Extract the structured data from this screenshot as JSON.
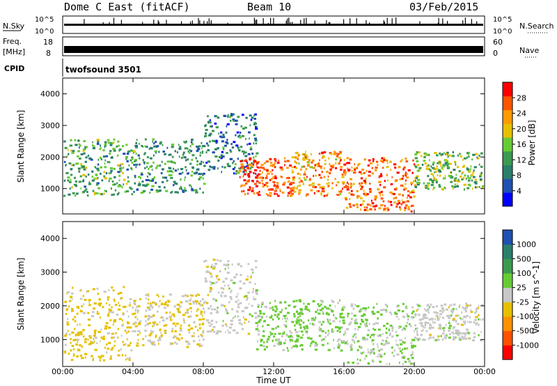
{
  "header": {
    "title": "Dome C East (fitACF)",
    "beam": "Beam 10",
    "date": "03/Feb/2015"
  },
  "status_panels": {
    "nsky_label": "N.Sky",
    "nsky_ticks": [
      "10^5",
      "10^0"
    ],
    "nsearch_label": "N.Search",
    "nsearch_ticks": [
      "10^5",
      "10^0"
    ],
    "freq_label": "Freq.",
    "freq_unit": "[MHz]",
    "freq_ticks": [
      "18",
      "8"
    ],
    "nave_label": "Nave",
    "nave_ticks": [
      "60",
      "0"
    ],
    "cpid_label": "CPID",
    "cpid_value": "twofsound 3501"
  },
  "chart_data": [
    {
      "type": "heatmap",
      "title": "",
      "xlabel": "Time UT",
      "ylabel": "Slant Range [km]",
      "xlim": [
        "00:00",
        "24:00"
      ],
      "ylim": [
        200,
        4500
      ],
      "x_ticks": [
        "00:00",
        "04:00",
        "08:00",
        "12:00",
        "16:00",
        "20:00",
        "00:00"
      ],
      "y_ticks": [
        1000,
        2000,
        3000,
        4000
      ],
      "colorbar": {
        "label": "Power [dB]",
        "ticks": [
          "28",
          "24",
          "20",
          "16",
          "12",
          "8",
          "4"
        ],
        "colors": [
          "#0000ff",
          "#2050b0",
          "#2a7f6a",
          "#3c9a50",
          "#66cc33",
          "#e6c000",
          "#ff9900",
          "#ff5500",
          "#ff0000"
        ]
      },
      "bands": [
        {
          "t_start": 0,
          "t_end": 4,
          "r_min": 800,
          "r_max": 2600,
          "value": 14
        },
        {
          "t_start": 4,
          "t_end": 8,
          "r_min": 900,
          "r_max": 2600,
          "value": 12
        },
        {
          "t_start": 8,
          "t_end": 11,
          "r_min": 1500,
          "r_max": 3400,
          "value": 10
        },
        {
          "t_start": 10,
          "t_end": 13,
          "r_min": 800,
          "r_max": 2000,
          "value": 28
        },
        {
          "t_start": 13,
          "t_end": 16,
          "r_min": 800,
          "r_max": 2200,
          "value": 24
        },
        {
          "t_start": 16,
          "t_end": 20,
          "r_min": 300,
          "r_max": 2000,
          "value": 26
        },
        {
          "t_start": 20,
          "t_end": 24,
          "r_min": 1000,
          "r_max": 2200,
          "value": 16
        }
      ]
    },
    {
      "type": "heatmap",
      "title": "",
      "xlabel": "Time UT",
      "ylabel": "Slant Range [km]",
      "xlim": [
        "00:00",
        "24:00"
      ],
      "ylim": [
        200,
        4500
      ],
      "x_ticks": [
        "00:00",
        "04:00",
        "08:00",
        "12:00",
        "16:00",
        "20:00",
        "00:00"
      ],
      "y_ticks": [
        1000,
        2000,
        3000,
        4000
      ],
      "colorbar": {
        "label": "Velocity [m s^-1]",
        "ticks": [
          "1000",
          "500",
          "100",
          "25",
          "-25",
          "-100",
          "-500",
          "-1000"
        ],
        "colors": [
          "#ff0000",
          "#ff5000",
          "#ff9000",
          "#e6c000",
          "#c8c8c8",
          "#66cc33",
          "#3c9a50",
          "#2a7f6a",
          "#2050b0"
        ]
      },
      "bands": [
        {
          "t_start": 0,
          "t_end": 4,
          "r_min": 400,
          "r_max": 2600,
          "value": -200
        },
        {
          "t_start": 4,
          "t_end": 8,
          "r_min": 800,
          "r_max": 2400,
          "value": -150
        },
        {
          "t_start": 8,
          "t_end": 11,
          "r_min": 1200,
          "r_max": 3400,
          "value": 0
        },
        {
          "t_start": 11,
          "t_end": 16,
          "r_min": 700,
          "r_max": 2200,
          "value": 200
        },
        {
          "t_start": 16,
          "t_end": 20,
          "r_min": 300,
          "r_max": 2100,
          "value": 150
        },
        {
          "t_start": 20,
          "t_end": 24,
          "r_min": 1000,
          "r_max": 2100,
          "value": 0
        }
      ]
    }
  ]
}
